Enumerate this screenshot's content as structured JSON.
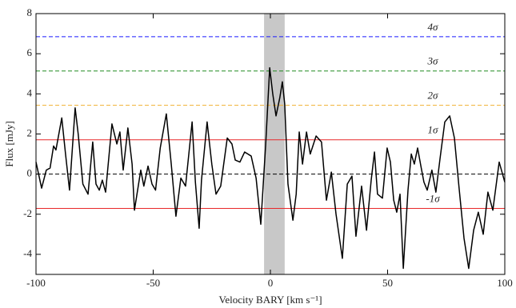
{
  "chart_data": {
    "type": "line",
    "x_label": "Velocity BARY [km s⁻¹]",
    "y_label": "Flux [mJy]",
    "xlim": [
      -100,
      100
    ],
    "ylim": [
      -5,
      8
    ],
    "xticks": [
      -100,
      -50,
      0,
      50,
      100
    ],
    "yticks": [
      -4,
      -2,
      0,
      2,
      4,
      6,
      8
    ],
    "shaded_band": [
      -2.7,
      6.1
    ],
    "hlines": [
      {
        "value": 6.85,
        "label": "4σ",
        "color": "#1a1aff",
        "style": "dashed"
      },
      {
        "value": 5.14,
        "label": "3σ",
        "color": "#228b22",
        "style": "dashed"
      },
      {
        "value": 3.43,
        "label": "2σ",
        "color": "#f0b030",
        "style": "dashed"
      },
      {
        "value": 1.71,
        "label": "1σ",
        "color": "#e8282a",
        "style": "solid"
      },
      {
        "value": 0,
        "color": "#000000",
        "style": "dashed"
      },
      {
        "value": -1.71,
        "label": "-1σ",
        "color": "#e8282a",
        "style": "solid"
      }
    ],
    "x": [
      -100,
      -97.6,
      -95.6,
      -94,
      -92.5,
      -91.5,
      -89,
      -87.4,
      -85.7,
      -83.3,
      -82,
      -80,
      -77.8,
      -75.8,
      -74.4,
      -73,
      -71.7,
      -70.3,
      -67.6,
      -65.5,
      -64.2,
      -62.8,
      -60.8,
      -59,
      -58,
      -55.3,
      -54,
      -52.2,
      -50.5,
      -49,
      -47,
      -44.4,
      -42.3,
      -40.3,
      -38.2,
      -36.2,
      -33.4,
      -32,
      -30.4,
      -29.4,
      -27,
      -25,
      -23.2,
      -21.2,
      -18.4,
      -16.4,
      -15,
      -13,
      -11,
      -8.2,
      -6.1,
      -4.1,
      -2,
      -0.3,
      1,
      2.4,
      4,
      5.1,
      6.1,
      7.5,
      9.6,
      11,
      12.3,
      13.7,
      15.4,
      17,
      19.5,
      21.8,
      23.9,
      26,
      28,
      30.7,
      32.8,
      34.8,
      36.5,
      38.9,
      41,
      43,
      44.4,
      45.7,
      47.8,
      49.8,
      51.2,
      52.6,
      53.9,
      55.3,
      56.7,
      58.7,
      60.1,
      61.4,
      62.8,
      64.2,
      65.5,
      66.9,
      68.9,
      70.6,
      72.4,
      74.4,
      76.5,
      78.5,
      80.5,
      82.6,
      84.6,
      86.7,
      88.7,
      90.8,
      92.8,
      94.9,
      97.6,
      100
    ],
    "series": [
      {
        "color": "#000000",
        "values": [
          0.6,
          -0.7,
          0.2,
          0.3,
          1.4,
          1.2,
          2.8,
          1.0,
          -0.8,
          3.3,
          2.0,
          -0.5,
          -1.0,
          1.6,
          -0.5,
          -0.8,
          -0.3,
          -0.9,
          2.5,
          1.5,
          2.1,
          0.2,
          2.3,
          0.5,
          -1.8,
          0.2,
          -0.6,
          0.4,
          -0.5,
          -0.8,
          1.3,
          3.0,
          0.5,
          -2.1,
          -0.2,
          -0.6,
          2.6,
          -0.4,
          -2.7,
          -0.3,
          2.6,
          0.5,
          -1.0,
          -0.6,
          1.8,
          1.5,
          0.7,
          0.6,
          1.1,
          0.9,
          -0.2,
          -2.5,
          1.5,
          5.3,
          4.0,
          2.9,
          3.8,
          4.6,
          3.5,
          -0.5,
          -2.3,
          -1.0,
          2.1,
          0.5,
          2.1,
          1.0,
          1.9,
          1.6,
          -1.3,
          0.1,
          -2.0,
          -4.2,
          -0.5,
          -0.1,
          -3.1,
          -0.6,
          -2.8,
          -0.3,
          1.1,
          -1.0,
          -1.2,
          1.3,
          0.6,
          -1.3,
          -1.9,
          -1.0,
          -4.7,
          -0.8,
          1.0,
          0.5,
          1.3,
          0.4,
          -0.4,
          -0.8,
          0.2,
          -0.9,
          0.8,
          2.6,
          2.9,
          1.8,
          -0.7,
          -3.2,
          -4.7,
          -2.8,
          -1.9,
          -3.0,
          -0.9,
          -1.8,
          0.6,
          -0.4
        ]
      }
    ]
  }
}
